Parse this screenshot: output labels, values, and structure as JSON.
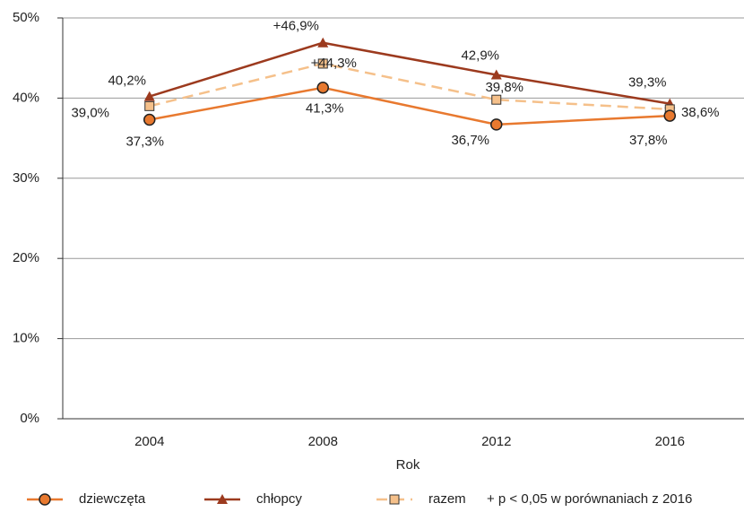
{
  "chart_data": {
    "type": "line",
    "categories": [
      "2004",
      "2008",
      "2012",
      "2016"
    ],
    "x_label": "Rok",
    "ylim": [
      0,
      50
    ],
    "yticks": [
      {
        "value": 0,
        "label": "0%"
      },
      {
        "value": 10,
        "label": "10%"
      },
      {
        "value": 20,
        "label": "20%"
      },
      {
        "value": 30,
        "label": "30%"
      },
      {
        "value": 40,
        "label": "40%"
      },
      {
        "value": 50,
        "label": "50%"
      }
    ],
    "grid": true,
    "series": [
      {
        "name": "dziewczęta",
        "color": "#e8792f",
        "marker": "circle",
        "values": [
          37.3,
          41.3,
          36.7,
          37.8
        ],
        "value_labels": [
          "37,3%",
          "41,3%",
          "36,7%",
          "37,8%"
        ]
      },
      {
        "name": "chłopcy",
        "color": "#9c3a1e",
        "marker": "triangle",
        "values": [
          40.2,
          46.9,
          42.9,
          39.3
        ],
        "value_labels": [
          "40,2%",
          "+46,9%",
          "42,9%",
          "39,3%"
        ]
      },
      {
        "name": "razem",
        "color": "#f5c08a",
        "marker": "square",
        "dashed": true,
        "values": [
          39.0,
          44.3,
          39.8,
          38.6
        ],
        "value_labels": [
          "39,0%",
          "+44,3%",
          "39,8%",
          "38,6%"
        ]
      }
    ],
    "note": "+ p < 0,05 w porównaniach z 2016"
  }
}
